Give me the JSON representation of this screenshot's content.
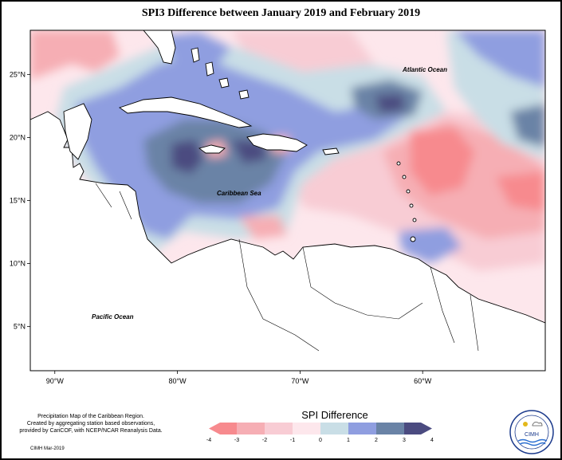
{
  "title": "SPI3 Difference between January 2019 and February 2019",
  "map": {
    "lat_ticks": [
      {
        "value": 25,
        "label": "25°N"
      },
      {
        "value": 20,
        "label": "20°N"
      },
      {
        "value": 15,
        "label": "15°N"
      },
      {
        "value": 10,
        "label": "10°N"
      },
      {
        "value": 5,
        "label": "5°N"
      }
    ],
    "lon_ticks": [
      {
        "value": -90,
        "label": "90°W"
      },
      {
        "value": -80,
        "label": "80°W"
      },
      {
        "value": -70,
        "label": "70°W"
      },
      {
        "value": -60,
        "label": "60°W"
      }
    ],
    "extent": {
      "lon": [
        -92,
        -50
      ],
      "lat": [
        1.5,
        28.5
      ]
    },
    "labels": {
      "atlantic": "Atlantic Ocean",
      "caribbean": "Caribbean Sea",
      "pacific": "Pacific Ocean"
    },
    "colors": {
      "land": "#ffffff",
      "coast": "#000000"
    }
  },
  "legend": {
    "title": "SPI Difference",
    "ticks": [
      "-4",
      "-3",
      "-2",
      "-1",
      "0",
      "1",
      "2",
      "3",
      "4"
    ],
    "bins": [
      {
        "from": -4,
        "to": -3,
        "color": "#f78a8e"
      },
      {
        "from": -3,
        "to": -2,
        "color": "#f6aeb4"
      },
      {
        "from": -2,
        "to": -1,
        "color": "#f8ccd4"
      },
      {
        "from": -1,
        "to": 0,
        "color": "#fde7ec"
      },
      {
        "from": 0,
        "to": 1,
        "color": "#c9dee6"
      },
      {
        "from": 1,
        "to": 2,
        "color": "#8f9ee0"
      },
      {
        "from": 2,
        "to": 3,
        "color": "#6a83a6"
      },
      {
        "from": 3,
        "to": 4,
        "color": "#4b4b80"
      }
    ]
  },
  "credit": {
    "line1": "Precipitation Map of the Caribbean Region.",
    "line2": "Created by aggregating station based observations,",
    "line3": "provided by CariCOF, with NCEP/NCAR Reanalysis Data.",
    "date": "CIMH Mar-2019"
  },
  "logo": {
    "text": "CIMH",
    "icon": "cimh-logo"
  }
}
